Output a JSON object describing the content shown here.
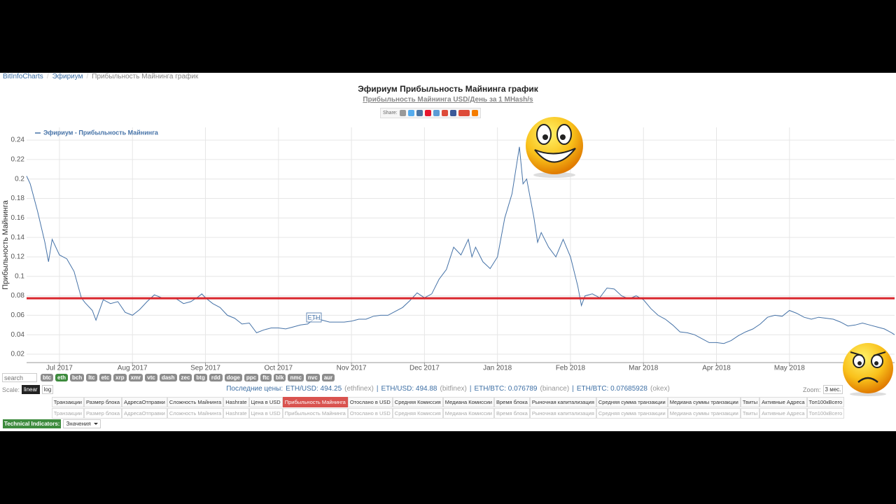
{
  "breadcrumb": [
    "BitInfoCharts",
    "Эфириум",
    "Прибыльность Майнинга график"
  ],
  "share_label": "Share:",
  "chart_data": {
    "type": "line",
    "title": "Эфириум Прибыльность Майнинга график",
    "subtitle": "Прибыльность Майнинга USD/День за 1 MHash/s",
    "y_label": "Прибыльность Майнинга",
    "x": [
      6.55,
      6.6,
      6.7,
      6.8,
      6.85,
      6.9,
      7.0,
      7.1,
      7.2,
      7.3,
      7.35,
      7.45,
      7.5,
      7.6,
      7.7,
      7.8,
      7.9,
      8.0,
      8.1,
      8.2,
      8.3,
      8.4,
      8.5,
      8.6,
      8.7,
      8.8,
      8.9,
      8.95,
      9.0,
      9.1,
      9.2,
      9.3,
      9.4,
      9.5,
      9.6,
      9.7,
      9.8,
      9.9,
      10.0,
      10.1,
      10.2,
      10.3,
      10.4,
      10.5,
      10.6,
      10.7,
      10.8,
      10.9,
      11.0,
      11.1,
      11.2,
      11.3,
      11.4,
      11.5,
      11.6,
      11.7,
      11.8,
      11.9,
      12.0,
      12.1,
      12.2,
      12.3,
      12.4,
      12.5,
      12.6,
      12.65,
      12.7,
      12.8,
      12.9,
      13.0,
      13.1,
      13.2,
      13.3,
      13.35,
      13.4,
      13.5,
      13.55,
      13.6,
      13.7,
      13.8,
      13.9,
      14.0,
      14.1,
      14.15,
      14.2,
      14.3,
      14.4,
      14.5,
      14.6,
      14.7,
      14.8,
      14.9,
      15.0,
      15.1,
      15.2,
      15.3,
      15.4,
      15.5,
      15.6,
      15.7,
      15.8,
      15.9,
      16.0,
      16.1,
      16.2,
      16.3,
      16.4,
      16.5,
      16.6,
      16.7,
      16.8,
      16.9,
      17.0,
      17.1,
      17.2,
      17.3,
      17.4,
      17.5,
      17.6,
      17.7,
      17.8,
      17.9,
      18.0,
      18.1,
      18.2,
      18.3,
      18.4,
      18.44
    ],
    "series": [
      {
        "name": "Эфириум - Прибыльность Майнинга",
        "color": "#4572a7",
        "values": [
          0.203,
          0.195,
          0.167,
          0.135,
          0.115,
          0.138,
          0.122,
          0.118,
          0.105,
          0.078,
          0.073,
          0.065,
          0.055,
          0.076,
          0.072,
          0.074,
          0.063,
          0.06,
          0.066,
          0.074,
          0.081,
          0.078,
          0.077,
          0.077,
          0.072,
          0.074,
          0.079,
          0.082,
          0.078,
          0.072,
          0.068,
          0.06,
          0.057,
          0.051,
          0.052,
          0.042,
          0.045,
          0.047,
          0.047,
          0.046,
          0.048,
          0.05,
          0.051,
          0.057,
          0.055,
          0.053,
          0.053,
          0.053,
          0.054,
          0.056,
          0.056,
          0.059,
          0.06,
          0.06,
          0.064,
          0.068,
          0.075,
          0.083,
          0.078,
          0.082,
          0.097,
          0.107,
          0.13,
          0.122,
          0.138,
          0.12,
          0.13,
          0.115,
          0.108,
          0.12,
          0.16,
          0.185,
          0.233,
          0.195,
          0.2,
          0.16,
          0.135,
          0.145,
          0.13,
          0.12,
          0.138,
          0.12,
          0.09,
          0.07,
          0.08,
          0.082,
          0.078,
          0.088,
          0.087,
          0.08,
          0.077,
          0.08,
          0.076,
          0.067,
          0.06,
          0.056,
          0.05,
          0.043,
          0.042,
          0.04,
          0.036,
          0.032,
          0.032,
          0.031,
          0.034,
          0.039,
          0.043,
          0.046,
          0.051,
          0.058,
          0.06,
          0.059,
          0.065,
          0.062,
          0.058,
          0.056,
          0.058,
          0.057,
          0.056,
          0.053,
          0.049,
          0.05,
          0.052,
          0.05,
          0.048,
          0.046,
          0.042,
          0.04
        ]
      }
    ],
    "xlim": [
      6.55,
      18.44
    ],
    "xticks": [
      {
        "value": 7,
        "label": "Jul 2017"
      },
      {
        "value": 8,
        "label": "Aug 2017"
      },
      {
        "value": 9,
        "label": "Sep 2017"
      },
      {
        "value": 10,
        "label": "Oct 2017"
      },
      {
        "value": 11,
        "label": "Nov 2017"
      },
      {
        "value": 12,
        "label": "Dec 2017"
      },
      {
        "value": 13,
        "label": "Jan 2018"
      },
      {
        "value": 14,
        "label": "Feb 2018"
      },
      {
        "value": 15,
        "label": "Mar 2018"
      },
      {
        "value": 16,
        "label": "Apr 2018"
      },
      {
        "value": 17,
        "label": "May 2018"
      }
    ],
    "ylim": [
      0.0114,
      0.253
    ],
    "yticks": [
      0.02,
      0.04,
      0.06,
      0.08,
      0.1,
      0.12,
      0.14,
      0.16,
      0.18,
      0.2,
      0.22,
      0.24
    ],
    "grid": true,
    "legend": "top-left",
    "annotation": "ETH",
    "reference_line": {
      "value": 0.0775,
      "color": "#d9262c"
    }
  },
  "controls": {
    "search_placeholder": "search",
    "coins": [
      "btc",
      "eth",
      "bch",
      "ltc",
      "etc",
      "xrp",
      "xmr",
      "vtc",
      "dash",
      "zec",
      "btg",
      "rdd",
      "doge",
      "ppc",
      "ftc",
      "blk",
      "nmc",
      "nvc",
      "aur"
    ],
    "active_coin": 1,
    "scale_label": "Scale:",
    "scales": [
      "linear",
      "log"
    ],
    "active_scale": 0,
    "prices_label": "Последние цены:",
    "separator": "|",
    "prices": [
      {
        "pair": "ETH/USD: 494.25",
        "source": "(ethfinex)"
      },
      {
        "pair": "ETH/USD: 494.88",
        "source": "(bitfinex)"
      },
      {
        "pair": "ETH/BTC: 0.076789",
        "source": "(binance)"
      },
      {
        "pair": "ETH/BTC: 0.07685928",
        "source": "(okex)"
      }
    ],
    "zoom_label": "Zoom:",
    "zoom": "3 мес.",
    "tabs": [
      "Транзакции",
      "Размер блока",
      "АдресаОтправки",
      "Сложность Майнинга",
      "Hashrate",
      "Цена в USD",
      "Прибыльность Майнинга",
      "Отослано в USD",
      "Средняя Комиссия",
      "Медиана Комиссии",
      "Время блока",
      "Рыночная капитализация",
      "Средняя сумма транзакции",
      "Медиана суммы транзакции",
      "Твиты",
      "Активные Адреса",
      "Топ100кВсего"
    ],
    "active_tab": 6,
    "indicators_label": "Technical Indicators:",
    "indicators_select": "Значения"
  }
}
